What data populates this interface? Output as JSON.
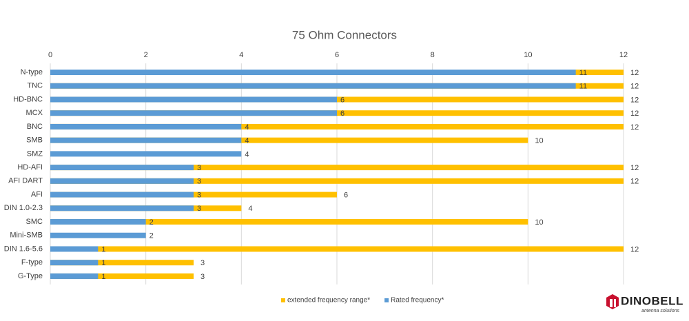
{
  "chart_data": {
    "type": "bar",
    "orientation": "horizontal",
    "overlap": true,
    "title": "75 Ohm Connectors",
    "categories": [
      "N-type",
      "TNC",
      "HD-BNC",
      "MCX",
      "BNC",
      "SMB",
      "SMZ",
      "HD-AFI",
      "AFI DART",
      "AFI",
      "DIN 1.0-2.3",
      "SMC",
      "Mini-SMB",
      "DIN 1.6-5.6",
      "F-type",
      "G-Type"
    ],
    "series": [
      {
        "name": "extended frequency range*",
        "color": "#ffc000",
        "values": [
          12,
          12,
          12,
          12,
          12,
          10,
          null,
          12,
          12,
          6,
          4,
          10,
          null,
          12,
          3,
          3
        ]
      },
      {
        "name": "Rated frequency*",
        "color": "#5b9bd5",
        "values": [
          11,
          11,
          6,
          6,
          4,
          4,
          4,
          3,
          3,
          3,
          3,
          2,
          2,
          1,
          1,
          1
        ]
      }
    ],
    "xlim": [
      0,
      12
    ],
    "xticks": [
      0,
      2,
      4,
      6,
      8,
      10,
      12
    ],
    "grid": true,
    "legend": "bottom"
  },
  "brand": {
    "name": "DINOBELL",
    "tagline": "antenna solutions"
  }
}
